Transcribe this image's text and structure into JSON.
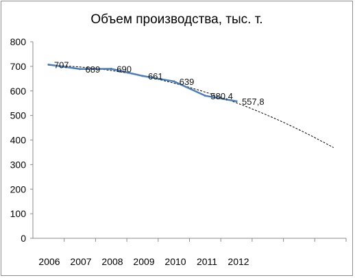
{
  "chart_data": {
    "type": "line",
    "title": "Объем производства, тыс. т.",
    "xlabel": "",
    "ylabel": "",
    "categories": [
      "2006",
      "2007",
      "2008",
      "2009",
      "2010",
      "2011",
      "2012"
    ],
    "series": [
      {
        "values": [
          707,
          689,
          690,
          661,
          639,
          580.4,
          557.8
        ],
        "labels": [
          "707",
          "689",
          "690",
          "661",
          "639",
          "580,4",
          "557,8"
        ],
        "color": "#4a7ebb"
      }
    ],
    "trendline": {
      "style": "dashed",
      "color": "#000000",
      "extends_periods": 3,
      "end_value": 378
    },
    "ylim": [
      0,
      800
    ],
    "yticks": [
      "0",
      "100",
      "200",
      "300",
      "400",
      "500",
      "600",
      "700",
      "800"
    ],
    "grid": false,
    "legend": "none"
  }
}
